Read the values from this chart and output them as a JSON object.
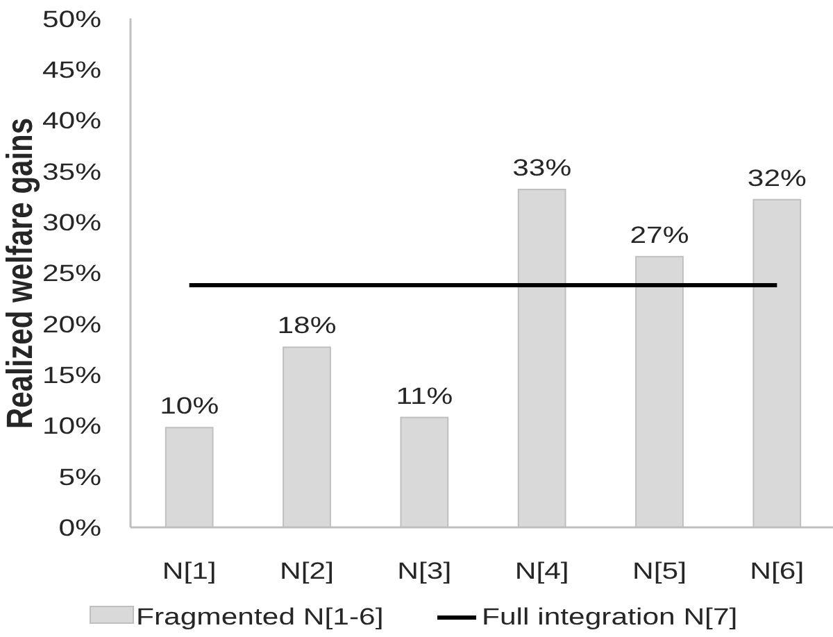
{
  "chart_data": {
    "type": "bar",
    "ylabel": "Realized welfare gains",
    "categories": [
      "N[1]",
      "N[2]",
      "N[3]",
      "N[4]",
      "N[5]",
      "N[6]"
    ],
    "series": [
      {
        "name": "Fragmented N[1-6]",
        "color": "#d9d9d9",
        "values": [
          9.8,
          17.7,
          10.8,
          33.2,
          26.6,
          32.2
        ],
        "value_labels": [
          "10%",
          "18%",
          "11%",
          "33%",
          "27%",
          "32%"
        ]
      },
      {
        "name": "Full integration N[7]",
        "type": "line",
        "color": "#000000",
        "values": [
          23.8,
          23.8,
          23.8,
          23.8,
          23.8,
          23.8
        ]
      }
    ],
    "ylim": [
      0,
      50
    ],
    "yticks": [
      {
        "value": 0,
        "label": "0%"
      },
      {
        "value": 5,
        "label": "5%"
      },
      {
        "value": 10,
        "label": "10%"
      },
      {
        "value": 15,
        "label": "15%"
      },
      {
        "value": 20,
        "label": "20%"
      },
      {
        "value": 25,
        "label": "25%"
      },
      {
        "value": 30,
        "label": "30%"
      },
      {
        "value": 35,
        "label": "35%"
      },
      {
        "value": 40,
        "label": "40%"
      },
      {
        "value": 45,
        "label": "45%"
      },
      {
        "value": 50,
        "label": "50%"
      }
    ],
    "legend": "bottom"
  }
}
